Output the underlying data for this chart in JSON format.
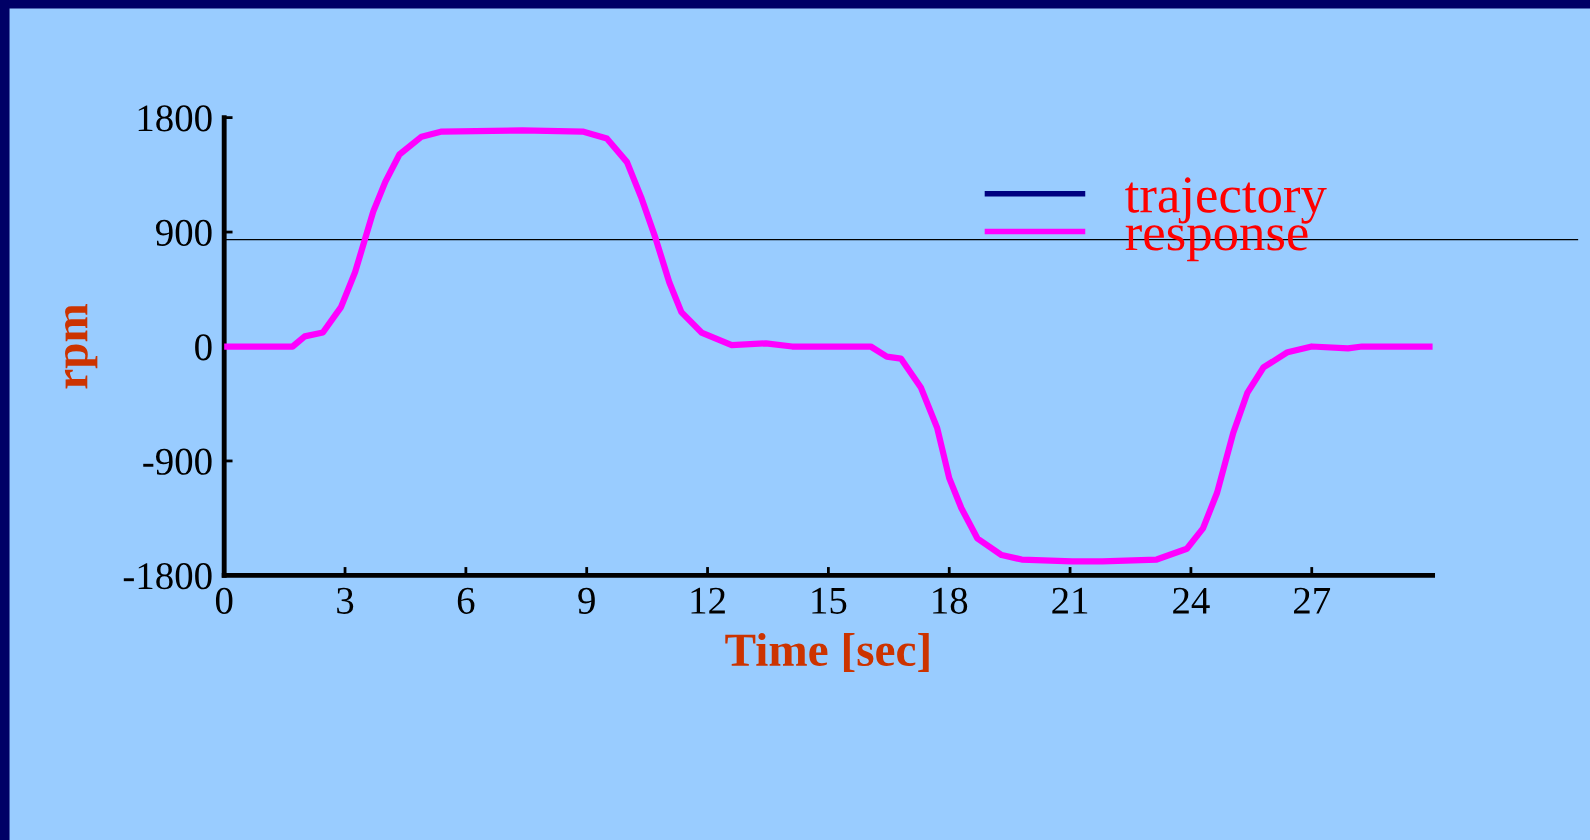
{
  "chart_data": {
    "type": "line",
    "xlabel": "Time [sec]",
    "ylabel": "rpm",
    "xlim": [
      0,
      30
    ],
    "xticks": [
      0,
      3,
      6,
      9,
      12,
      15,
      18,
      21,
      24,
      27
    ],
    "ylim": [
      -1800,
      1800
    ],
    "yticks": [
      -1800,
      -900,
      0,
      900,
      1800
    ],
    "grid": false,
    "x": [
      0,
      1.7,
      2.0,
      2.45,
      2.9,
      3.25,
      3.7,
      4.0,
      4.35,
      4.9,
      5.4,
      7.4,
      8.9,
      9.5,
      10.0,
      10.35,
      10.7,
      11.05,
      11.35,
      11.85,
      12.6,
      13.45,
      14.1,
      16.05,
      16.45,
      16.8,
      17.3,
      17.7,
      18.0,
      18.3,
      18.7,
      19.3,
      19.8,
      21.05,
      21.8,
      23.15,
      23.9,
      24.3,
      24.65,
      25.05,
      25.4,
      25.8,
      26.4,
      27.0,
      27.9,
      28.25,
      30
    ],
    "legend": "top right",
    "line_style": "solid",
    "marker": "none",
    "ref_lines": [
      {
        "axis": "y",
        "value": 840,
        "color": "#000000",
        "line_style": "solid"
      }
    ],
    "series": [
      {
        "name": "trajectory",
        "color": "#000080",
        "values": [
          null,
          null,
          null,
          null,
          null,
          null,
          null,
          null,
          null,
          null,
          null,
          null,
          null,
          null,
          null,
          null,
          null,
          null,
          null,
          null,
          null,
          null,
          null,
          null,
          null,
          null,
          null,
          null,
          null,
          null,
          null,
          null,
          null,
          null,
          null,
          null,
          null,
          null,
          null,
          null,
          null,
          null,
          null,
          null,
          null,
          null,
          null
        ]
      },
      {
        "name": "response",
        "color": "#ff00ff",
        "values": [
          0,
          0,
          80,
          110,
          310,
          585,
          1060,
          1295,
          1510,
          1650,
          1690,
          1700,
          1690,
          1635,
          1450,
          1175,
          860,
          505,
          270,
          110,
          10,
          25,
          0,
          0,
          -80,
          -95,
          -325,
          -640,
          -1035,
          -1270,
          -1510,
          -1640,
          -1675,
          -1690,
          -1690,
          -1675,
          -1590,
          -1430,
          -1150,
          -680,
          -365,
          -165,
          -45,
          0,
          -15,
          0,
          0
        ]
      }
    ]
  }
}
